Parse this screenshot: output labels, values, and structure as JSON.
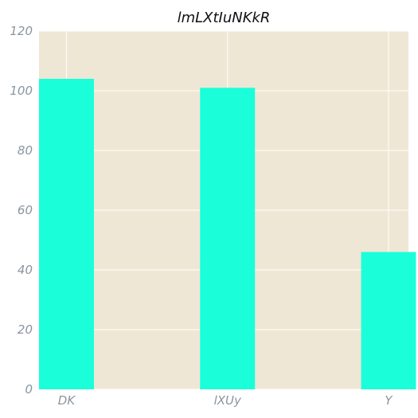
{
  "chart_data": {
    "type": "bar",
    "title": "lmLXtIuNKkR",
    "xlabel": "",
    "ylabel": "",
    "categories": [
      "DK",
      "lXUy",
      "Y"
    ],
    "values": [
      104,
      101,
      46
    ],
    "ylim": [
      0,
      120
    ],
    "yticks": [
      0,
      20,
      40,
      60,
      80,
      100,
      120
    ],
    "grid": true,
    "legend": "none"
  },
  "colors": {
    "bar": "#1affda",
    "plot_background": "#efe7d5",
    "grid": "#ffffff",
    "tick_text": "#8a95a0",
    "title_text": "#111111"
  }
}
